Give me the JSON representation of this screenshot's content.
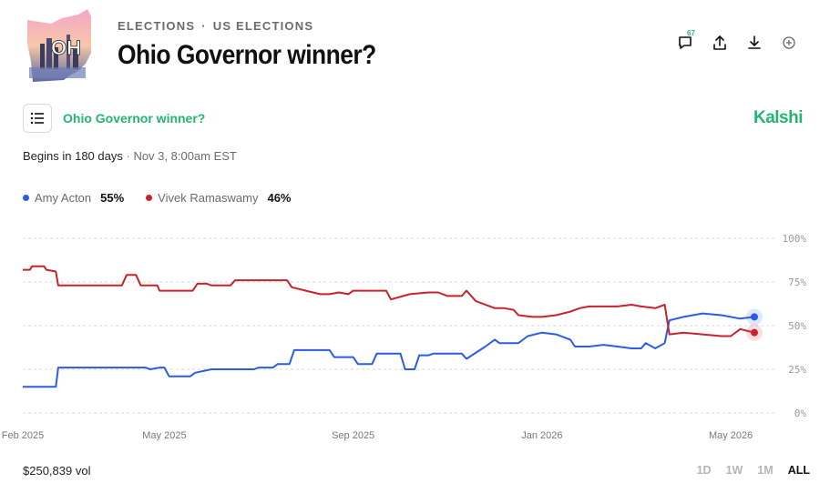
{
  "header": {
    "thumb_text": "OH",
    "breadcrumb": [
      "ELECTIONS",
      "US ELECTIONS"
    ],
    "title": "Ohio Governor winner?",
    "comment_count": "67",
    "icons": [
      "comment-icon",
      "share-icon",
      "download-icon",
      "add-circle-icon"
    ]
  },
  "market": {
    "title": "Ohio Governor winner?",
    "brand": "Kalshi",
    "list_icon": "list-icon",
    "begins": "Begins in 180 days",
    "date": "Nov 3, 8:00am EST"
  },
  "legend": [
    {
      "name": "Amy Acton",
      "value": "55%",
      "color": "#2b5ce6"
    },
    {
      "name": "Vivek Ramaswamy",
      "value": "46%",
      "color": "#c8232c"
    }
  ],
  "footer": {
    "volume": "$250,839 vol",
    "ranges": [
      "1D",
      "1W",
      "1M",
      "ALL"
    ],
    "active_range": "ALL"
  },
  "chart_data": {
    "type": "line",
    "x_unit": "month",
    "x_ticks": [
      {
        "label": "Feb 2025",
        "x": 0
      },
      {
        "label": "May 2025",
        "x": 3
      },
      {
        "label": "Sep 2025",
        "x": 7
      },
      {
        "label": "Jan 2026",
        "x": 11
      },
      {
        "label": "May 2026",
        "x": 15
      }
    ],
    "y_ticks": [
      "100%",
      "75%",
      "50%",
      "25%",
      "0%"
    ],
    "ylim": [
      0,
      100
    ],
    "xlim": [
      0,
      15.5
    ],
    "grid": true,
    "series": [
      {
        "name": "Amy Acton",
        "color": "#2b5ce6",
        "points": [
          [
            0,
            15
          ],
          [
            0.7,
            15
          ],
          [
            0.75,
            26
          ],
          [
            2.6,
            26
          ],
          [
            2.7,
            25
          ],
          [
            2.9,
            26
          ],
          [
            3.0,
            26
          ],
          [
            3.1,
            21
          ],
          [
            3.55,
            21
          ],
          [
            3.65,
            23
          ],
          [
            4.0,
            25
          ],
          [
            4.9,
            25
          ],
          [
            5.0,
            26
          ],
          [
            5.3,
            26
          ],
          [
            5.4,
            28
          ],
          [
            5.65,
            28
          ],
          [
            5.75,
            36
          ],
          [
            6.5,
            36
          ],
          [
            6.6,
            32
          ],
          [
            7.0,
            32
          ],
          [
            7.1,
            28
          ],
          [
            7.4,
            28
          ],
          [
            7.5,
            34
          ],
          [
            8.0,
            34
          ],
          [
            8.1,
            25
          ],
          [
            8.3,
            25
          ],
          [
            8.4,
            33
          ],
          [
            8.6,
            33
          ],
          [
            8.7,
            34
          ],
          [
            9.3,
            34
          ],
          [
            9.4,
            31
          ],
          [
            9.8,
            38
          ],
          [
            10.0,
            42
          ],
          [
            10.1,
            40
          ],
          [
            10.5,
            40
          ],
          [
            10.7,
            44
          ],
          [
            11.0,
            46
          ],
          [
            11.3,
            45
          ],
          [
            11.6,
            42
          ],
          [
            11.7,
            38
          ],
          [
            12.0,
            38
          ],
          [
            12.3,
            39
          ],
          [
            12.6,
            38
          ],
          [
            12.9,
            37
          ],
          [
            13.1,
            37
          ],
          [
            13.2,
            40
          ],
          [
            13.4,
            37
          ],
          [
            13.6,
            40
          ],
          [
            13.7,
            53
          ],
          [
            14.0,
            55
          ],
          [
            14.4,
            57
          ],
          [
            14.8,
            56
          ],
          [
            15.2,
            54
          ],
          [
            15.5,
            55
          ]
        ]
      },
      {
        "name": "Vivek Ramaswamy",
        "color": "#c8232c",
        "points": [
          [
            0,
            82
          ],
          [
            0.15,
            82
          ],
          [
            0.2,
            84
          ],
          [
            0.45,
            84
          ],
          [
            0.5,
            82
          ],
          [
            0.7,
            81
          ],
          [
            0.75,
            73
          ],
          [
            1.8,
            73
          ],
          [
            2.1,
            73
          ],
          [
            2.2,
            79
          ],
          [
            2.4,
            79
          ],
          [
            2.5,
            73
          ],
          [
            2.85,
            73
          ],
          [
            2.9,
            70
          ],
          [
            3.6,
            70
          ],
          [
            3.7,
            74
          ],
          [
            3.9,
            74
          ],
          [
            4.0,
            73
          ],
          [
            4.4,
            73
          ],
          [
            4.5,
            76
          ],
          [
            5.6,
            76
          ],
          [
            5.7,
            72
          ],
          [
            6.0,
            70
          ],
          [
            6.3,
            68
          ],
          [
            6.5,
            68
          ],
          [
            6.7,
            69
          ],
          [
            6.9,
            68
          ],
          [
            7.0,
            70
          ],
          [
            7.7,
            70
          ],
          [
            7.8,
            65
          ],
          [
            8.2,
            68
          ],
          [
            8.6,
            69
          ],
          [
            8.8,
            69
          ],
          [
            9.0,
            67
          ],
          [
            9.3,
            67
          ],
          [
            9.4,
            70
          ],
          [
            9.6,
            64
          ],
          [
            10.0,
            60
          ],
          [
            10.2,
            60
          ],
          [
            10.4,
            59
          ],
          [
            10.5,
            56
          ],
          [
            10.8,
            55
          ],
          [
            11.0,
            55
          ],
          [
            11.3,
            56
          ],
          [
            11.6,
            58
          ],
          [
            11.8,
            60
          ],
          [
            12.0,
            61
          ],
          [
            12.3,
            61
          ],
          [
            12.6,
            61
          ],
          [
            12.9,
            62
          ],
          [
            13.1,
            61
          ],
          [
            13.4,
            60
          ],
          [
            13.6,
            62
          ],
          [
            13.7,
            45
          ],
          [
            14.0,
            46
          ],
          [
            14.4,
            45
          ],
          [
            14.8,
            44
          ],
          [
            15.0,
            44
          ],
          [
            15.2,
            48
          ],
          [
            15.5,
            46
          ]
        ]
      }
    ]
  }
}
